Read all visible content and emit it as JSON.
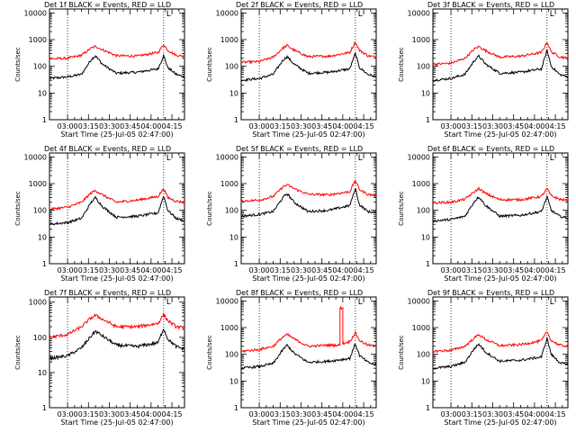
{
  "colors": {
    "events": "#000000",
    "lld": "#ff0000",
    "background": "#ffffff",
    "axis": "#000000"
  },
  "common": {
    "ylabel": "Counts/sec",
    "xlabel": "Start Time (25-Jul-05 02:47:00)",
    "yticks": [
      "1",
      "10",
      "100",
      "1000",
      "10000"
    ],
    "xticks": [
      "03:00",
      "03:15",
      "03:30",
      "03:45",
      "04:00",
      "04:15"
    ],
    "corner_mark": "L"
  },
  "chart_data": [
    {
      "type": "line",
      "title": "Det 1f BLACK = Events, RED = LLD",
      "yscale": "log",
      "ylim": [
        1,
        14000
      ],
      "xlim": [
        "02:47",
        "04:24"
      ],
      "x_time_range": [
        "02:47",
        "04:24"
      ],
      "grid": false,
      "legend": "none",
      "vlines": [
        "03:00",
        "04:09"
      ],
      "series": [
        {
          "name": "Events",
          "color": "#000000",
          "x": [
            "02:47",
            "03:00",
            "03:10",
            "03:17",
            "03:20",
            "03:25",
            "03:35",
            "03:50",
            "04:05",
            "04:09",
            "04:12",
            "04:18",
            "04:24"
          ],
          "values": [
            35,
            40,
            50,
            180,
            250,
            120,
            55,
            60,
            80,
            250,
            90,
            50,
            40
          ]
        },
        {
          "name": "LLD",
          "color": "#ff0000",
          "x": [
            "02:47",
            "03:00",
            "03:10",
            "03:17",
            "03:20",
            "03:25",
            "03:35",
            "03:50",
            "04:05",
            "04:09",
            "04:12",
            "04:18",
            "04:24"
          ],
          "values": [
            190,
            200,
            260,
            480,
            560,
            420,
            250,
            240,
            330,
            650,
            400,
            260,
            240
          ]
        }
      ]
    },
    {
      "type": "line",
      "title": "Det 2f BLACK = Events, RED = LLD",
      "yscale": "log",
      "ylim": [
        1,
        14000
      ],
      "xlim": [
        "02:47",
        "04:24"
      ],
      "x_time_range": [
        "02:47",
        "04:24"
      ],
      "grid": false,
      "legend": "none",
      "vlines": [
        "03:00",
        "04:09"
      ],
      "series": [
        {
          "name": "Events",
          "color": "#000000",
          "x": [
            "02:47",
            "03:00",
            "03:10",
            "03:17",
            "03:20",
            "03:25",
            "03:35",
            "03:50",
            "04:05",
            "04:09",
            "04:12",
            "04:18",
            "04:24"
          ],
          "values": [
            30,
            35,
            50,
            170,
            230,
            120,
            55,
            60,
            80,
            300,
            90,
            50,
            40
          ]
        },
        {
          "name": "LLD",
          "color": "#ff0000",
          "x": [
            "02:47",
            "03:00",
            "03:10",
            "03:17",
            "03:20",
            "03:25",
            "03:35",
            "03:50",
            "04:05",
            "04:09",
            "04:12",
            "04:18",
            "04:24"
          ],
          "values": [
            140,
            150,
            220,
            480,
            600,
            400,
            230,
            240,
            330,
            800,
            400,
            250,
            220
          ]
        }
      ]
    },
    {
      "type": "line",
      "title": "Det 3f BLACK = Events, RED = LLD",
      "yscale": "log",
      "ylim": [
        1,
        14000
      ],
      "xlim": [
        "02:47",
        "04:24"
      ],
      "x_time_range": [
        "02:47",
        "04:24"
      ],
      "grid": false,
      "legend": "none",
      "vlines": [
        "03:00",
        "04:09"
      ],
      "series": [
        {
          "name": "Events",
          "color": "#000000",
          "x": [
            "02:47",
            "03:00",
            "03:10",
            "03:17",
            "03:20",
            "03:25",
            "03:35",
            "03:50",
            "04:05",
            "04:09",
            "04:12",
            "04:18",
            "04:24"
          ],
          "values": [
            30,
            35,
            50,
            170,
            240,
            120,
            55,
            60,
            80,
            400,
            100,
            50,
            40
          ]
        },
        {
          "name": "LLD",
          "color": "#ff0000",
          "x": [
            "02:47",
            "03:00",
            "03:10",
            "03:17",
            "03:20",
            "03:25",
            "03:35",
            "03:50",
            "04:05",
            "04:09",
            "04:12",
            "04:18",
            "04:24"
          ],
          "values": [
            120,
            130,
            200,
            450,
            550,
            380,
            220,
            240,
            330,
            800,
            350,
            230,
            200
          ]
        }
      ]
    },
    {
      "type": "line",
      "title": "Det 4f BLACK = Events, RED = LLD",
      "yscale": "log",
      "ylim": [
        1,
        14000
      ],
      "xlim": [
        "02:47",
        "04:24"
      ],
      "x_time_range": [
        "02:47",
        "04:24"
      ],
      "grid": false,
      "legend": "none",
      "vlines": [
        "03:00",
        "04:09"
      ],
      "series": [
        {
          "name": "Events",
          "color": "#000000",
          "x": [
            "02:47",
            "03:00",
            "03:10",
            "03:17",
            "03:20",
            "03:25",
            "03:35",
            "03:50",
            "04:05",
            "04:09",
            "04:12",
            "04:18",
            "04:24"
          ],
          "values": [
            30,
            35,
            50,
            200,
            300,
            140,
            55,
            60,
            80,
            350,
            100,
            50,
            40
          ]
        },
        {
          "name": "LLD",
          "color": "#ff0000",
          "x": [
            "02:47",
            "03:00",
            "03:10",
            "03:17",
            "03:20",
            "03:25",
            "03:35",
            "03:50",
            "04:05",
            "04:09",
            "04:12",
            "04:18",
            "04:24"
          ],
          "values": [
            110,
            130,
            200,
            450,
            550,
            380,
            200,
            240,
            330,
            650,
            300,
            220,
            200
          ]
        }
      ]
    },
    {
      "type": "line",
      "title": "Det 5f BLACK = Events, RED = LLD",
      "yscale": "log",
      "ylim": [
        1,
        14000
      ],
      "xlim": [
        "02:47",
        "04:24"
      ],
      "x_time_range": [
        "02:47",
        "04:24"
      ],
      "grid": false,
      "legend": "none",
      "vlines": [
        "03:00",
        "04:09"
      ],
      "series": [
        {
          "name": "Events",
          "color": "#000000",
          "x": [
            "02:47",
            "03:00",
            "03:10",
            "03:17",
            "03:20",
            "03:25",
            "03:35",
            "03:50",
            "04:05",
            "04:09",
            "04:12",
            "04:18",
            "04:24"
          ],
          "values": [
            60,
            70,
            90,
            300,
            420,
            200,
            90,
            100,
            150,
            650,
            160,
            90,
            80
          ]
        },
        {
          "name": "LLD",
          "color": "#ff0000",
          "x": [
            "02:47",
            "03:00",
            "03:10",
            "03:17",
            "03:20",
            "03:25",
            "03:35",
            "03:50",
            "04:05",
            "04:09",
            "04:12",
            "04:18",
            "04:24"
          ],
          "values": [
            220,
            240,
            330,
            750,
            900,
            650,
            400,
            380,
            500,
            1300,
            600,
            400,
            350
          ]
        }
      ]
    },
    {
      "type": "line",
      "title": "Det 6f BLACK = Events, RED = LLD",
      "yscale": "log",
      "ylim": [
        1,
        14000
      ],
      "xlim": [
        "02:47",
        "04:24"
      ],
      "x_time_range": [
        "02:47",
        "04:24"
      ],
      "grid": false,
      "legend": "none",
      "vlines": [
        "03:00",
        "04:09"
      ],
      "series": [
        {
          "name": "Events",
          "color": "#000000",
          "x": [
            "02:47",
            "03:00",
            "03:10",
            "03:17",
            "03:20",
            "03:25",
            "03:35",
            "03:50",
            "04:05",
            "04:09",
            "04:12",
            "04:18",
            "04:24"
          ],
          "values": [
            40,
            45,
            60,
            220,
            320,
            150,
            60,
            65,
            90,
            320,
            100,
            60,
            50
          ]
        },
        {
          "name": "LLD",
          "color": "#ff0000",
          "x": [
            "02:47",
            "03:00",
            "03:10",
            "03:17",
            "03:20",
            "03:25",
            "03:35",
            "03:50",
            "04:05",
            "04:09",
            "04:12",
            "04:18",
            "04:24"
          ],
          "values": [
            190,
            200,
            260,
            500,
            650,
            420,
            250,
            250,
            330,
            650,
            350,
            260,
            230
          ]
        }
      ]
    },
    {
      "type": "line",
      "title": "Det 7f BLACK = Events, RED = LLD",
      "yscale": "log",
      "ylim": [
        1,
        1400
      ],
      "xlim": [
        "02:47",
        "04:24"
      ],
      "x_time_range": [
        "02:47",
        "04:24"
      ],
      "grid": false,
      "legend": "none",
      "vlines": [
        "03:00",
        "04:09"
      ],
      "series": [
        {
          "name": "Events",
          "color": "#000000",
          "x": [
            "02:47",
            "03:00",
            "03:10",
            "03:17",
            "03:20",
            "03:25",
            "03:35",
            "03:50",
            "04:05",
            "04:09",
            "04:12",
            "04:18",
            "04:24"
          ],
          "values": [
            25,
            30,
            50,
            110,
            150,
            110,
            60,
            55,
            70,
            180,
            90,
            55,
            45
          ]
        },
        {
          "name": "LLD",
          "color": "#ff0000",
          "x": [
            "02:47",
            "03:00",
            "03:10",
            "03:17",
            "03:20",
            "03:25",
            "03:35",
            "03:50",
            "04:05",
            "04:09",
            "04:12",
            "04:18",
            "04:24"
          ],
          "values": [
            100,
            120,
            200,
            360,
            420,
            330,
            200,
            200,
            250,
            450,
            300,
            200,
            180
          ]
        }
      ]
    },
    {
      "type": "line",
      "title": "Det 8f BLACK = Events, RED = LLD",
      "yscale": "log",
      "ylim": [
        1,
        14000
      ],
      "xlim": [
        "02:47",
        "04:24"
      ],
      "x_time_range": [
        "02:47",
        "04:24"
      ],
      "grid": false,
      "legend": "none",
      "vlines": [
        "03:00",
        "04:09"
      ],
      "series": [
        {
          "name": "Events",
          "color": "#000000",
          "x": [
            "02:47",
            "03:00",
            "03:10",
            "03:17",
            "03:20",
            "03:25",
            "03:35",
            "03:50",
            "04:05",
            "04:09",
            "04:12",
            "04:18",
            "04:24"
          ],
          "values": [
            30,
            35,
            45,
            150,
            220,
            110,
            50,
            55,
            70,
            250,
            90,
            50,
            40
          ]
        },
        {
          "name": "LLD",
          "color": "#ff0000",
          "x": [
            "02:47",
            "03:00",
            "03:10",
            "03:17",
            "03:20",
            "03:25",
            "03:35",
            "03:50",
            "03:58",
            "03:58",
            "04:00",
            "04:00",
            "04:05",
            "04:09",
            "04:12",
            "04:18",
            "04:24"
          ],
          "values": [
            130,
            150,
            200,
            450,
            550,
            380,
            200,
            220,
            220,
            5500,
            5500,
            250,
            300,
            650,
            330,
            220,
            200
          ]
        }
      ]
    },
    {
      "type": "line",
      "title": "Det 9f BLACK = Events, RED = LLD",
      "yscale": "log",
      "ylim": [
        1,
        14000
      ],
      "xlim": [
        "02:47",
        "04:24"
      ],
      "x_time_range": [
        "02:47",
        "04:24"
      ],
      "grid": false,
      "legend": "none",
      "vlines": [
        "03:00",
        "04:09"
      ],
      "series": [
        {
          "name": "Events",
          "color": "#000000",
          "x": [
            "02:47",
            "03:00",
            "03:10",
            "03:17",
            "03:20",
            "03:25",
            "03:35",
            "03:50",
            "04:05",
            "04:09",
            "04:12",
            "04:18",
            "04:24"
          ],
          "values": [
            30,
            35,
            50,
            170,
            240,
            120,
            55,
            60,
            80,
            400,
            100,
            50,
            40
          ]
        },
        {
          "name": "LLD",
          "color": "#ff0000",
          "x": [
            "02:47",
            "03:00",
            "03:10",
            "03:17",
            "03:20",
            "03:25",
            "03:35",
            "03:50",
            "04:05",
            "04:09",
            "04:12",
            "04:18",
            "04:24"
          ],
          "values": [
            130,
            140,
            200,
            420,
            550,
            360,
            210,
            230,
            320,
            700,
            330,
            220,
            200
          ]
        }
      ]
    }
  ]
}
